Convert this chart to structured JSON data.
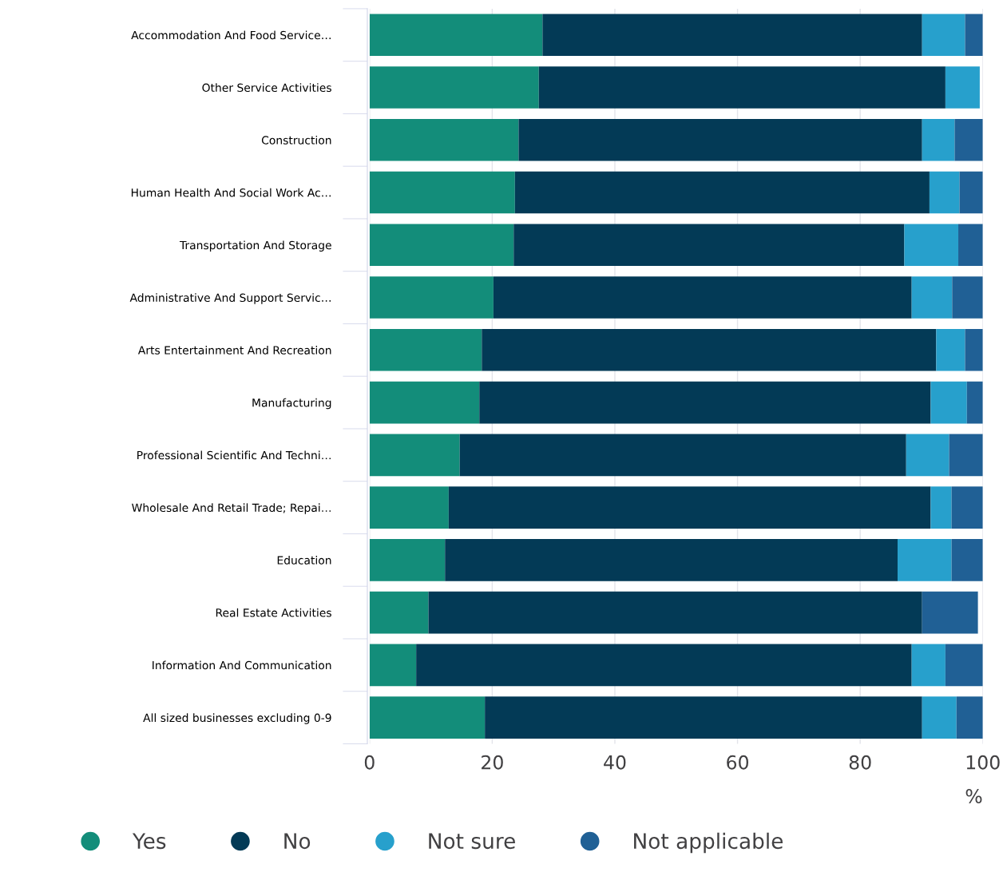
{
  "chart_data": {
    "type": "bar",
    "orientation": "horizontal",
    "stacked": true,
    "xlabel": "%",
    "categories": [
      "Accommodation And Food Service…",
      "Other Service Activities",
      "Construction",
      "Human Health And Social Work Ac…",
      "Transportation And Storage",
      "Administrative And Support Servic…",
      "Arts Entertainment And Recreation",
      "Manufacturing",
      "Professional Scientific And Techni…",
      "Wholesale And Retail Trade; Repai…",
      "Education",
      "Real Estate Activities",
      "Information And Communication",
      "All sized businesses excluding 0-9"
    ],
    "series": [
      {
        "name": "Yes",
        "color": "#138d7a",
        "values": [
          28.2,
          27.6,
          24.3,
          23.7,
          23.5,
          20.2,
          18.3,
          17.9,
          14.7,
          12.9,
          12.3,
          9.6,
          7.6,
          18.8
        ]
      },
      {
        "name": "No",
        "color": "#033a56",
        "values": [
          61.9,
          66.3,
          65.8,
          67.6,
          63.7,
          68.2,
          74.1,
          73.6,
          72.8,
          78.6,
          73.8,
          80.5,
          80.8,
          71.3
        ]
      },
      {
        "name": "Not sure",
        "color": "#27a0cc",
        "values": [
          7.0,
          5.6,
          5.3,
          4.9,
          8.8,
          6.6,
          4.7,
          5.9,
          7.0,
          3.4,
          8.8,
          null,
          5.5,
          5.6
        ]
      },
      {
        "name": "Not applicable",
        "color": "#206095",
        "values": [
          2.9,
          null,
          4.6,
          3.8,
          4.0,
          5.0,
          2.9,
          2.6,
          5.5,
          5.1,
          5.1,
          9.1,
          6.1,
          4.3
        ]
      }
    ],
    "xlim": [
      0,
      100
    ],
    "xticks": [
      0,
      20,
      40,
      60,
      80,
      100
    ],
    "grid": "x",
    "legend": "bottom left"
  }
}
